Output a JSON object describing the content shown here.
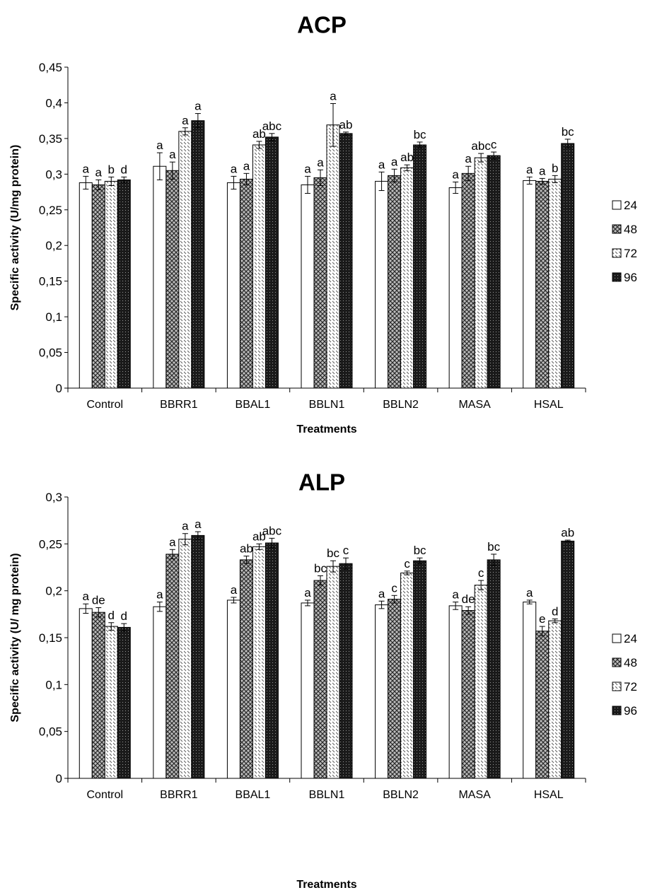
{
  "chart_data": [
    {
      "type": "bar",
      "title": "ACP",
      "xlabel": "Treatments",
      "ylabel": "Specific activity (U/mg protein)",
      "ylim": [
        0,
        0.45
      ],
      "yticks": [
        "0",
        "0,05",
        "0,1",
        "0,15",
        "0,2",
        "0,25",
        "0,3",
        "0,35",
        "0,4",
        "0,45"
      ],
      "yticks_values": [
        0,
        0.05,
        0.1,
        0.15,
        0.2,
        0.25,
        0.3,
        0.35,
        0.4,
        0.45
      ],
      "categories": [
        "Control",
        "BBRR1",
        "BBAL1",
        "BBLN1",
        "BBLN2",
        "MASA",
        "HSAL"
      ],
      "legend_position": "right",
      "grid": false,
      "series": [
        {
          "name": "24",
          "pattern": "white",
          "values": [
            0.288,
            0.311,
            0.288,
            0.285,
            0.29,
            0.281,
            0.291
          ],
          "errors": [
            0.009,
            0.019,
            0.009,
            0.012,
            0.013,
            0.008,
            0.005
          ],
          "labels": [
            "a",
            "a",
            "a",
            "a",
            "a",
            "a",
            "a"
          ]
        },
        {
          "name": "48",
          "pattern": "crosshatch",
          "values": [
            0.285,
            0.305,
            0.293,
            0.295,
            0.298,
            0.301,
            0.29
          ],
          "errors": [
            0.007,
            0.012,
            0.008,
            0.011,
            0.009,
            0.01,
            0.004
          ],
          "labels": [
            "a",
            "a",
            "a",
            "a",
            "a",
            "a",
            "a"
          ]
        },
        {
          "name": "72",
          "pattern": "dots",
          "values": [
            0.29,
            0.36,
            0.341,
            0.369,
            0.309,
            0.323,
            0.293
          ],
          "errors": [
            0.006,
            0.005,
            0.005,
            0.03,
            0.004,
            0.006,
            0.005
          ],
          "labels": [
            "b",
            "a",
            "ab",
            "a",
            "ab",
            "abc",
            "b"
          ]
        },
        {
          "name": "96",
          "pattern": "dark",
          "values": [
            0.292,
            0.375,
            0.352,
            0.357,
            0.341,
            0.326,
            0.343
          ],
          "errors": [
            0.004,
            0.01,
            0.005,
            0.002,
            0.004,
            0.005,
            0.006
          ],
          "labels": [
            "d",
            "a",
            "abc",
            "ab",
            "bc",
            "c",
            "bc"
          ]
        }
      ]
    },
    {
      "type": "bar",
      "title": "ALP",
      "xlabel": "Treatments",
      "ylabel": "Specific activity (U/ mg protein)",
      "ylim": [
        0,
        0.3
      ],
      "yticks": [
        "0",
        "0,05",
        "0,1",
        "0,15",
        "0,2",
        "0,25",
        "0,3"
      ],
      "yticks_values": [
        0,
        0.05,
        0.1,
        0.15,
        0.2,
        0.25,
        0.3
      ],
      "categories": [
        "Control",
        "BBRR1",
        "BBAL1",
        "BBLN1",
        "BBLN2",
        "MASA",
        "HSAL"
      ],
      "legend_position": "right",
      "grid": false,
      "series": [
        {
          "name": "24",
          "pattern": "white",
          "values": [
            0.181,
            0.183,
            0.19,
            0.187,
            0.185,
            0.184,
            0.188
          ],
          "errors": [
            0.005,
            0.005,
            0.003,
            0.003,
            0.004,
            0.004,
            0.002
          ],
          "labels": [
            "a",
            "a",
            "a",
            "a",
            "a",
            "a",
            "a"
          ]
        },
        {
          "name": "48",
          "pattern": "crosshatch",
          "values": [
            0.177,
            0.239,
            0.233,
            0.211,
            0.191,
            0.179,
            0.157
          ],
          "errors": [
            0.005,
            0.005,
            0.004,
            0.005,
            0.004,
            0.004,
            0.005
          ],
          "labels": [
            "de",
            "a",
            "ab",
            "bc",
            "c",
            "de",
            "e"
          ]
        },
        {
          "name": "72",
          "pattern": "dots",
          "values": [
            0.162,
            0.255,
            0.247,
            0.226,
            0.219,
            0.206,
            0.168
          ],
          "errors": [
            0.004,
            0.006,
            0.003,
            0.006,
            0.002,
            0.005,
            0.002
          ],
          "labels": [
            "d",
            "a",
            "ab",
            "bc",
            "c",
            "c",
            "d"
          ]
        },
        {
          "name": "96",
          "pattern": "dark",
          "values": [
            0.161,
            0.259,
            0.251,
            0.229,
            0.232,
            0.233,
            0.253
          ],
          "errors": [
            0.004,
            0.004,
            0.005,
            0.006,
            0.003,
            0.006,
            0.001
          ],
          "labels": [
            "d",
            "a",
            "abc",
            "c",
            "bc",
            "bc",
            "ab"
          ]
        }
      ]
    }
  ]
}
